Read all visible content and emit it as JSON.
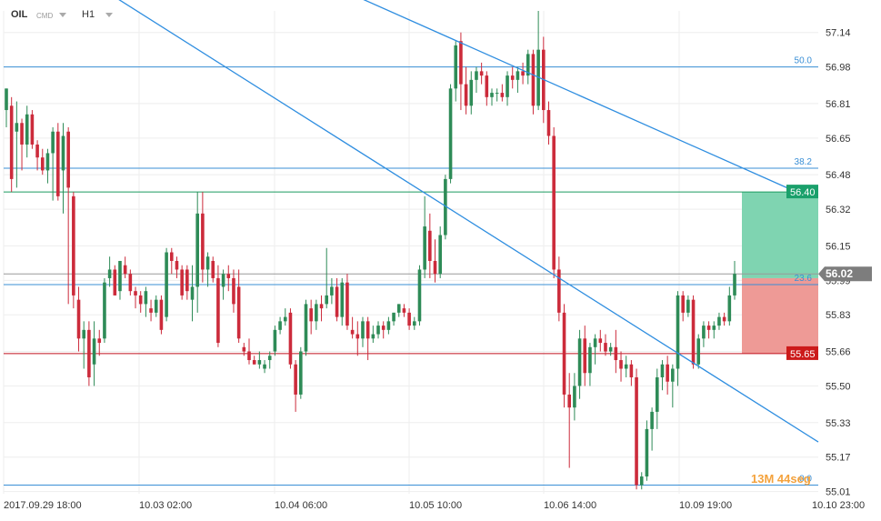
{
  "header": {
    "symbol": "OIL",
    "instrument_type": "CMD",
    "timeframe": "H1"
  },
  "colors": {
    "bull": "#2e8b57",
    "bear": "#cc2b3b",
    "fib_line": "#3a8fd6",
    "trend_line": "#2f8ee0",
    "target_line": "#1a9a5f",
    "stop_line": "#c0111f",
    "target_zone": "#7fd4b1",
    "stop_zone": "#ee9a96",
    "target_badge": "#1aa06b",
    "stop_badge": "#cc1a1a",
    "current_badge": "#7d7d7d",
    "countdown": "#f4a23c"
  },
  "chart_data": {
    "type": "candlestick",
    "ylim": [
      55.0,
      57.24
    ],
    "yticks": [
      57.14,
      56.98,
      56.81,
      56.65,
      56.48,
      56.32,
      56.15,
      55.99,
      55.83,
      55.66,
      55.5,
      55.33,
      55.17,
      55.01
    ],
    "ytick_labels": [
      "57.14",
      "56.98",
      "56.81",
      "56.65",
      "56.48",
      "56.32",
      "56.15",
      "55.99",
      "55.83",
      "55.66",
      "55.50",
      "55.33",
      "55.17",
      "55.01"
    ],
    "xtick_labels": [
      "2017.09.29   18:00",
      "10.03   02:00",
      "10.04   06:00",
      "10.05   10:00",
      "10.06   14:00",
      "10.09   19:00",
      "10.10   23:00"
    ],
    "xtick_index": [
      0,
      25,
      50,
      75,
      100,
      125,
      150
    ],
    "candles": [
      [
        56.78,
        56.88,
        56.7,
        56.88
      ],
      [
        56.8,
        56.84,
        56.4,
        56.46
      ],
      [
        56.68,
        56.82,
        56.42,
        56.72
      ],
      [
        56.72,
        56.74,
        56.5,
        56.62
      ],
      [
        56.62,
        56.8,
        56.56,
        56.76
      ],
      [
        56.76,
        56.78,
        56.6,
        56.62
      ],
      [
        56.62,
        56.64,
        56.5,
        56.56
      ],
      [
        56.56,
        56.6,
        56.48,
        56.5
      ],
      [
        56.5,
        56.6,
        56.44,
        56.58
      ],
      [
        56.58,
        56.7,
        56.36,
        56.68
      ],
      [
        56.68,
        56.72,
        56.36,
        56.38
      ],
      [
        56.5,
        56.72,
        56.3,
        56.66
      ],
      [
        56.68,
        56.7,
        55.88,
        56.42
      ],
      [
        56.38,
        56.4,
        55.86,
        55.92
      ],
      [
        55.9,
        55.96,
        55.66,
        55.72
      ],
      [
        55.72,
        55.8,
        55.58,
        55.76
      ],
      [
        55.76,
        55.8,
        55.5,
        55.54
      ],
      [
        55.6,
        55.8,
        55.5,
        55.72
      ],
      [
        55.72,
        55.76,
        55.64,
        55.7
      ],
      [
        55.72,
        56.0,
        55.7,
        55.98
      ],
      [
        56.0,
        56.1,
        55.96,
        56.04
      ],
      [
        56.04,
        56.06,
        55.92,
        55.92
      ],
      [
        55.94,
        56.08,
        55.9,
        56.08
      ],
      [
        56.06,
        56.1,
        56.0,
        56.02
      ],
      [
        56.02,
        56.04,
        55.92,
        55.94
      ],
      [
        55.94,
        55.96,
        55.86,
        55.92
      ],
      [
        55.92,
        55.94,
        55.84,
        55.88
      ],
      [
        55.88,
        55.96,
        55.82,
        55.94
      ],
      [
        55.86,
        55.9,
        55.8,
        55.84
      ],
      [
        55.84,
        55.92,
        55.82,
        55.9
      ],
      [
        55.9,
        55.92,
        55.74,
        55.76
      ],
      [
        55.82,
        56.14,
        55.8,
        56.12
      ],
      [
        56.12,
        56.14,
        56.02,
        56.08
      ],
      [
        56.08,
        56.1,
        56.0,
        56.04
      ],
      [
        56.04,
        56.06,
        55.9,
        55.92
      ],
      [
        56.04,
        56.06,
        55.9,
        55.94
      ],
      [
        55.9,
        56.06,
        55.8,
        55.96
      ],
      [
        55.96,
        56.4,
        55.84,
        56.3
      ],
      [
        56.3,
        56.4,
        55.98,
        56.04
      ],
      [
        56.04,
        56.12,
        55.96,
        56.1
      ],
      [
        56.08,
        56.1,
        55.98,
        56.0
      ],
      [
        56.0,
        56.06,
        55.68,
        55.7
      ],
      [
        55.96,
        56.04,
        55.9,
        56.02
      ],
      [
        56.02,
        56.06,
        55.94,
        56.0
      ],
      [
        56.0,
        56.04,
        55.84,
        55.88
      ],
      [
        55.96,
        56.04,
        55.7,
        55.72
      ],
      [
        55.68,
        55.7,
        55.64,
        55.66
      ],
      [
        55.66,
        55.72,
        55.6,
        55.62
      ],
      [
        55.62,
        55.64,
        55.6,
        55.6
      ],
      [
        55.6,
        55.66,
        55.58,
        55.62
      ],
      [
        55.58,
        55.62,
        55.56,
        55.6
      ],
      [
        55.62,
        55.66,
        55.58,
        55.64
      ],
      [
        55.66,
        55.78,
        55.64,
        55.76
      ],
      [
        55.76,
        55.82,
        55.74,
        55.8
      ],
      [
        55.8,
        55.86,
        55.78,
        55.82
      ],
      [
        55.84,
        55.86,
        55.58,
        55.6
      ],
      [
        55.6,
        55.62,
        55.38,
        55.46
      ],
      [
        55.46,
        55.68,
        55.44,
        55.66
      ],
      [
        55.66,
        55.9,
        55.64,
        55.88
      ],
      [
        55.86,
        55.9,
        55.74,
        55.8
      ],
      [
        55.8,
        55.9,
        55.76,
        55.88
      ],
      [
        55.88,
        55.92,
        55.8,
        55.86
      ],
      [
        55.88,
        56.14,
        55.86,
        55.92
      ],
      [
        55.92,
        56.0,
        55.88,
        55.96
      ],
      [
        55.96,
        56.0,
        55.8,
        55.82
      ],
      [
        55.82,
        56.0,
        55.78,
        55.98
      ],
      [
        55.98,
        56.02,
        55.76,
        55.78
      ],
      [
        55.76,
        55.82,
        55.72,
        55.74
      ],
      [
        55.74,
        55.8,
        55.64,
        55.72
      ],
      [
        55.72,
        55.82,
        55.68,
        55.8
      ],
      [
        55.8,
        55.82,
        55.62,
        55.72
      ],
      [
        55.72,
        55.78,
        55.7,
        55.74
      ],
      [
        55.74,
        55.8,
        55.72,
        55.78
      ],
      [
        55.78,
        55.8,
        55.72,
        55.76
      ],
      [
        55.76,
        55.82,
        55.74,
        55.8
      ],
      [
        55.8,
        55.84,
        55.78,
        55.84
      ],
      [
        55.84,
        55.88,
        55.82,
        55.88
      ],
      [
        55.86,
        55.88,
        55.82,
        55.84
      ],
      [
        55.84,
        55.86,
        55.76,
        55.78
      ],
      [
        55.78,
        55.82,
        55.76,
        55.8
      ],
      [
        55.8,
        56.06,
        55.78,
        56.04
      ],
      [
        56.04,
        56.38,
        56.0,
        56.24
      ],
      [
        56.22,
        56.3,
        56.0,
        56.08
      ],
      [
        56.08,
        56.18,
        55.98,
        56.02
      ],
      [
        56.02,
        56.24,
        56.0,
        56.2
      ],
      [
        56.2,
        56.48,
        56.18,
        56.46
      ],
      [
        56.46,
        56.9,
        56.44,
        56.88
      ],
      [
        56.88,
        57.1,
        56.82,
        57.08
      ],
      [
        57.1,
        57.14,
        56.78,
        56.9
      ],
      [
        56.9,
        56.98,
        56.76,
        56.8
      ],
      [
        56.8,
        56.96,
        56.76,
        56.92
      ],
      [
        56.92,
        56.98,
        56.86,
        56.96
      ],
      [
        56.96,
        57.0,
        56.9,
        56.94
      ],
      [
        56.94,
        56.96,
        56.8,
        56.84
      ],
      [
        56.84,
        56.88,
        56.8,
        56.86
      ],
      [
        56.86,
        56.88,
        56.82,
        56.86
      ],
      [
        56.86,
        56.9,
        56.82,
        56.84
      ],
      [
        56.84,
        56.96,
        56.8,
        56.94
      ],
      [
        56.94,
        56.98,
        56.88,
        56.92
      ],
      [
        56.92,
        56.98,
        56.86,
        56.96
      ],
      [
        56.96,
        57.0,
        56.9,
        56.94
      ],
      [
        56.94,
        57.06,
        56.9,
        57.04
      ],
      [
        57.04,
        57.06,
        56.76,
        56.8
      ],
      [
        56.8,
        57.24,
        56.78,
        57.06
      ],
      [
        57.06,
        57.12,
        56.72,
        56.78
      ],
      [
        56.78,
        56.82,
        56.62,
        56.66
      ],
      [
        56.66,
        56.7,
        56.0,
        56.04
      ],
      [
        56.04,
        56.1,
        55.8,
        55.84
      ],
      [
        55.84,
        55.88,
        55.4,
        55.46
      ],
      [
        55.46,
        55.56,
        55.12,
        55.4
      ],
      [
        55.4,
        55.56,
        55.34,
        55.5
      ],
      [
        55.5,
        55.76,
        55.44,
        55.72
      ],
      [
        55.72,
        55.78,
        55.5,
        55.56
      ],
      [
        55.56,
        55.7,
        55.5,
        55.68
      ],
      [
        55.68,
        55.74,
        55.6,
        55.72
      ],
      [
        55.72,
        55.76,
        55.66,
        55.7
      ],
      [
        55.7,
        55.74,
        55.64,
        55.66
      ],
      [
        55.66,
        55.7,
        55.64,
        55.68
      ],
      [
        55.68,
        55.76,
        55.56,
        55.62
      ],
      [
        55.62,
        55.66,
        55.52,
        55.58
      ],
      [
        55.58,
        55.64,
        55.54,
        55.6
      ],
      [
        55.6,
        55.62,
        55.5,
        55.54
      ],
      [
        55.54,
        55.58,
        55.02,
        55.04
      ],
      [
        55.04,
        55.1,
        55.02,
        55.08
      ],
      [
        55.08,
        55.34,
        55.06,
        55.3
      ],
      [
        55.3,
        55.4,
        55.2,
        55.38
      ],
      [
        55.38,
        55.58,
        55.3,
        55.54
      ],
      [
        55.54,
        55.62,
        55.48,
        55.6
      ],
      [
        55.6,
        55.64,
        55.46,
        55.52
      ],
      [
        55.52,
        55.6,
        55.4,
        55.58
      ],
      [
        55.58,
        55.94,
        55.5,
        55.92
      ],
      [
        55.92,
        55.94,
        55.8,
        55.84
      ],
      [
        55.84,
        55.92,
        55.82,
        55.9
      ],
      [
        55.9,
        55.92,
        55.58,
        55.6
      ],
      [
        55.6,
        55.74,
        55.58,
        55.72
      ],
      [
        55.72,
        55.8,
        55.68,
        55.78
      ],
      [
        55.78,
        55.8,
        55.72,
        55.76
      ],
      [
        55.76,
        55.8,
        55.72,
        55.78
      ],
      [
        55.78,
        55.84,
        55.76,
        55.82
      ],
      [
        55.82,
        55.84,
        55.78,
        55.8
      ],
      [
        55.8,
        55.96,
        55.78,
        55.92
      ],
      [
        55.92,
        56.08,
        55.9,
        56.02
      ]
    ],
    "fib_levels": [
      {
        "label": "50.0",
        "price": 56.98
      },
      {
        "label": "38.2",
        "price": 56.51
      },
      {
        "label": "23.6",
        "price": 55.97
      },
      {
        "label": "0.0",
        "price": 55.04
      }
    ],
    "trendlines": [
      {
        "points": [
          [
            "2017.09.29 18:00",
            57.3
          ],
          [
            "10.10 23:00",
            55.24
          ]
        ]
      },
      {
        "points": [
          [
            "10.04 06:00",
            57.3
          ],
          [
            "10.10 23:00",
            56.4
          ]
        ]
      }
    ],
    "trade_levels": {
      "target": {
        "price": 56.4,
        "label": "56.40"
      },
      "entry": {
        "price": 56.0
      },
      "stop": {
        "price": 55.65,
        "label": "55.65"
      }
    },
    "current_price": {
      "price": 56.02,
      "label": "56.02"
    },
    "countdown": {
      "minutes": "13M",
      "seconds": "44seg"
    }
  }
}
